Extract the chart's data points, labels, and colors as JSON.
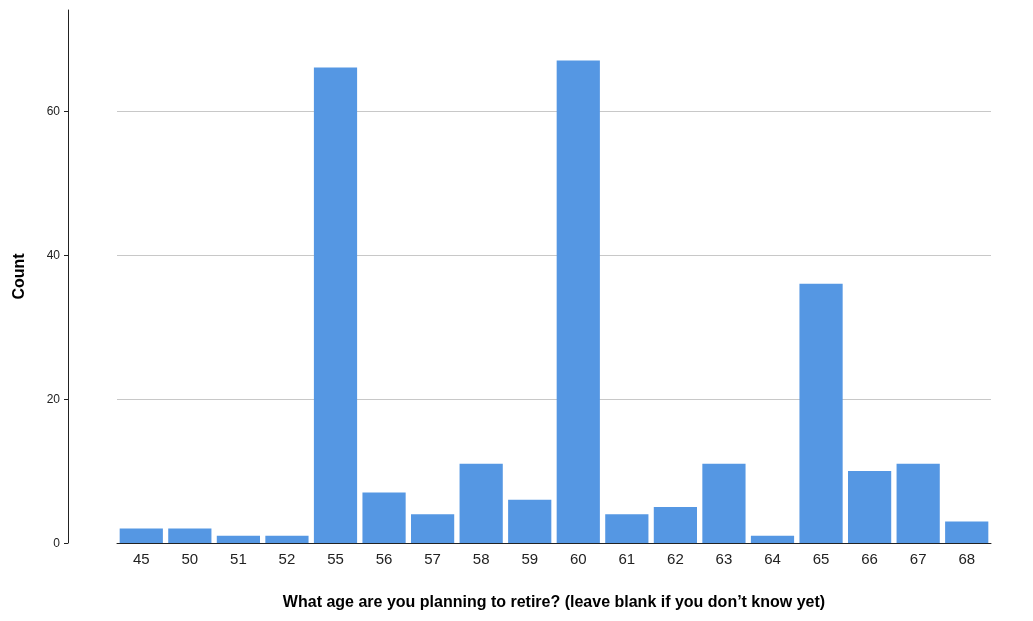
{
  "chart_data": {
    "type": "bar",
    "xlabel": "What age are you planning to retire? (leave blank if you don’t know yet)",
    "ylabel": "Count",
    "categories": [
      "45",
      "50",
      "51",
      "52",
      "55",
      "56",
      "57",
      "58",
      "59",
      "60",
      "61",
      "62",
      "63",
      "64",
      "65",
      "66",
      "67",
      "68"
    ],
    "values": [
      2,
      2,
      1,
      1,
      66,
      7,
      4,
      11,
      6,
      67,
      4,
      5,
      11,
      1,
      36,
      10,
      11,
      3
    ],
    "color": "#5597e3",
    "ylim": [
      0,
      74
    ],
    "yticks": [
      0,
      20,
      40,
      60
    ],
    "grid": "y"
  }
}
